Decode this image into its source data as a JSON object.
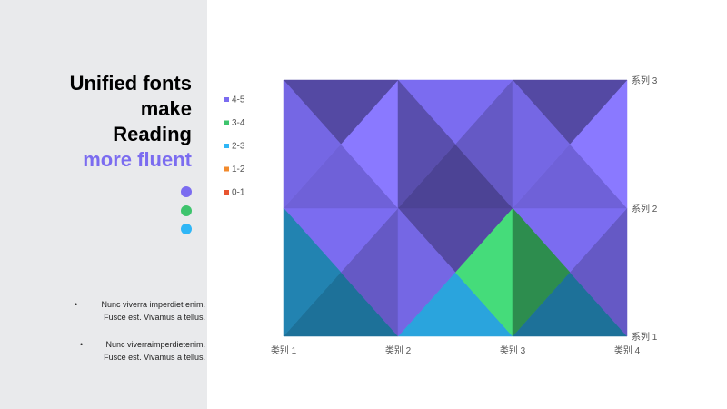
{
  "sidebar": {
    "title_lines": [
      "Unified fonts",
      "make",
      "Reading"
    ],
    "title_accent": "more fluent",
    "accent_color": "#7b6cf0",
    "dots": [
      {
        "color": "#7b6cf0"
      },
      {
        "color": "#3ec46d"
      },
      {
        "color": "#2fb6f6"
      }
    ],
    "bullets": [
      {
        "line1": "Nunc viverra imperdiet enim.",
        "line2": "Fusce est. Vivamus a tellus."
      },
      {
        "line1": "Nunc viverraimperdietenim.",
        "line2": "Fusce est. Vivamus a tellus."
      }
    ],
    "bullet_glyph": "•"
  },
  "chart_data": {
    "type": "surface",
    "title": "",
    "categories": [
      "类别 1",
      "类别 2",
      "类别 3",
      "类别 4"
    ],
    "series": [
      {
        "name": "系列 1",
        "values": [
          0.5,
          3.0,
          0.0,
          3.5
        ]
      },
      {
        "name": "系列 2",
        "values": [
          3.0,
          6.0,
          6.5,
          5.5
        ]
      },
      {
        "name": "系列 3",
        "values": [
          5.0,
          5.0,
          5.0,
          3.5
        ]
      }
    ],
    "bands": [
      {
        "label": "0-1",
        "color": "#e8542f"
      },
      {
        "label": "1-2",
        "color": "#f28a2c"
      },
      {
        "label": "2-3",
        "color": "#2fb6f6"
      },
      {
        "label": "3-4",
        "color": "#3ec46d"
      },
      {
        "label": "4-5",
        "color": "#7b6cf0"
      }
    ],
    "legend_order": [
      "4-5",
      "3-4",
      "2-3",
      "1-2",
      "0-1"
    ],
    "legend_position": "left",
    "grid": false
  }
}
